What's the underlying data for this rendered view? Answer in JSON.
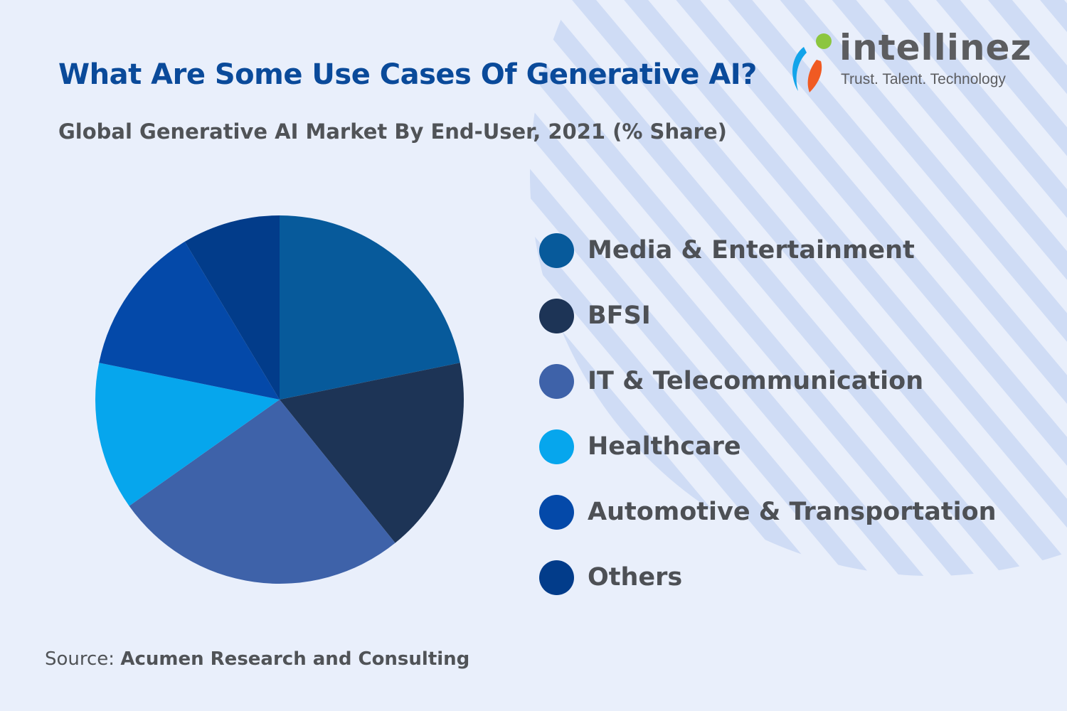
{
  "title": "What Are Some Use Cases Of Generative AI?",
  "subtitle": "Global Generative AI Market By End-User, 2021 (% Share)",
  "logo": {
    "name": "intellinez",
    "tagline": "Trust. Talent. Technology",
    "colors": [
      "#12a4ea",
      "#f05a22",
      "#8cc63f"
    ]
  },
  "source": {
    "label": "Source:",
    "name": "Acumen Research and Consulting"
  },
  "colors": {
    "background": "#e9effb",
    "stripes": "#cfdcf5",
    "title": "#0a4a9a"
  },
  "chart_data": {
    "type": "pie",
    "title": "Global Generative AI Market By End-User, 2021 (% Share)",
    "start_angle": "12 o'clock, clockwise",
    "legend_placement": "right",
    "categories": [
      "Media & Entertainment",
      "BFSI",
      "IT & Telecommunication",
      "Healthcare",
      "Automotive & Transportation",
      "Others"
    ],
    "values": [
      21.8,
      17.4,
      26.0,
      13.0,
      13.2,
      8.6
    ],
    "colors": [
      "#075a9b",
      "#1d3456",
      "#3e62a9",
      "#06a6ed",
      "#0449a9",
      "#023c8a"
    ]
  }
}
